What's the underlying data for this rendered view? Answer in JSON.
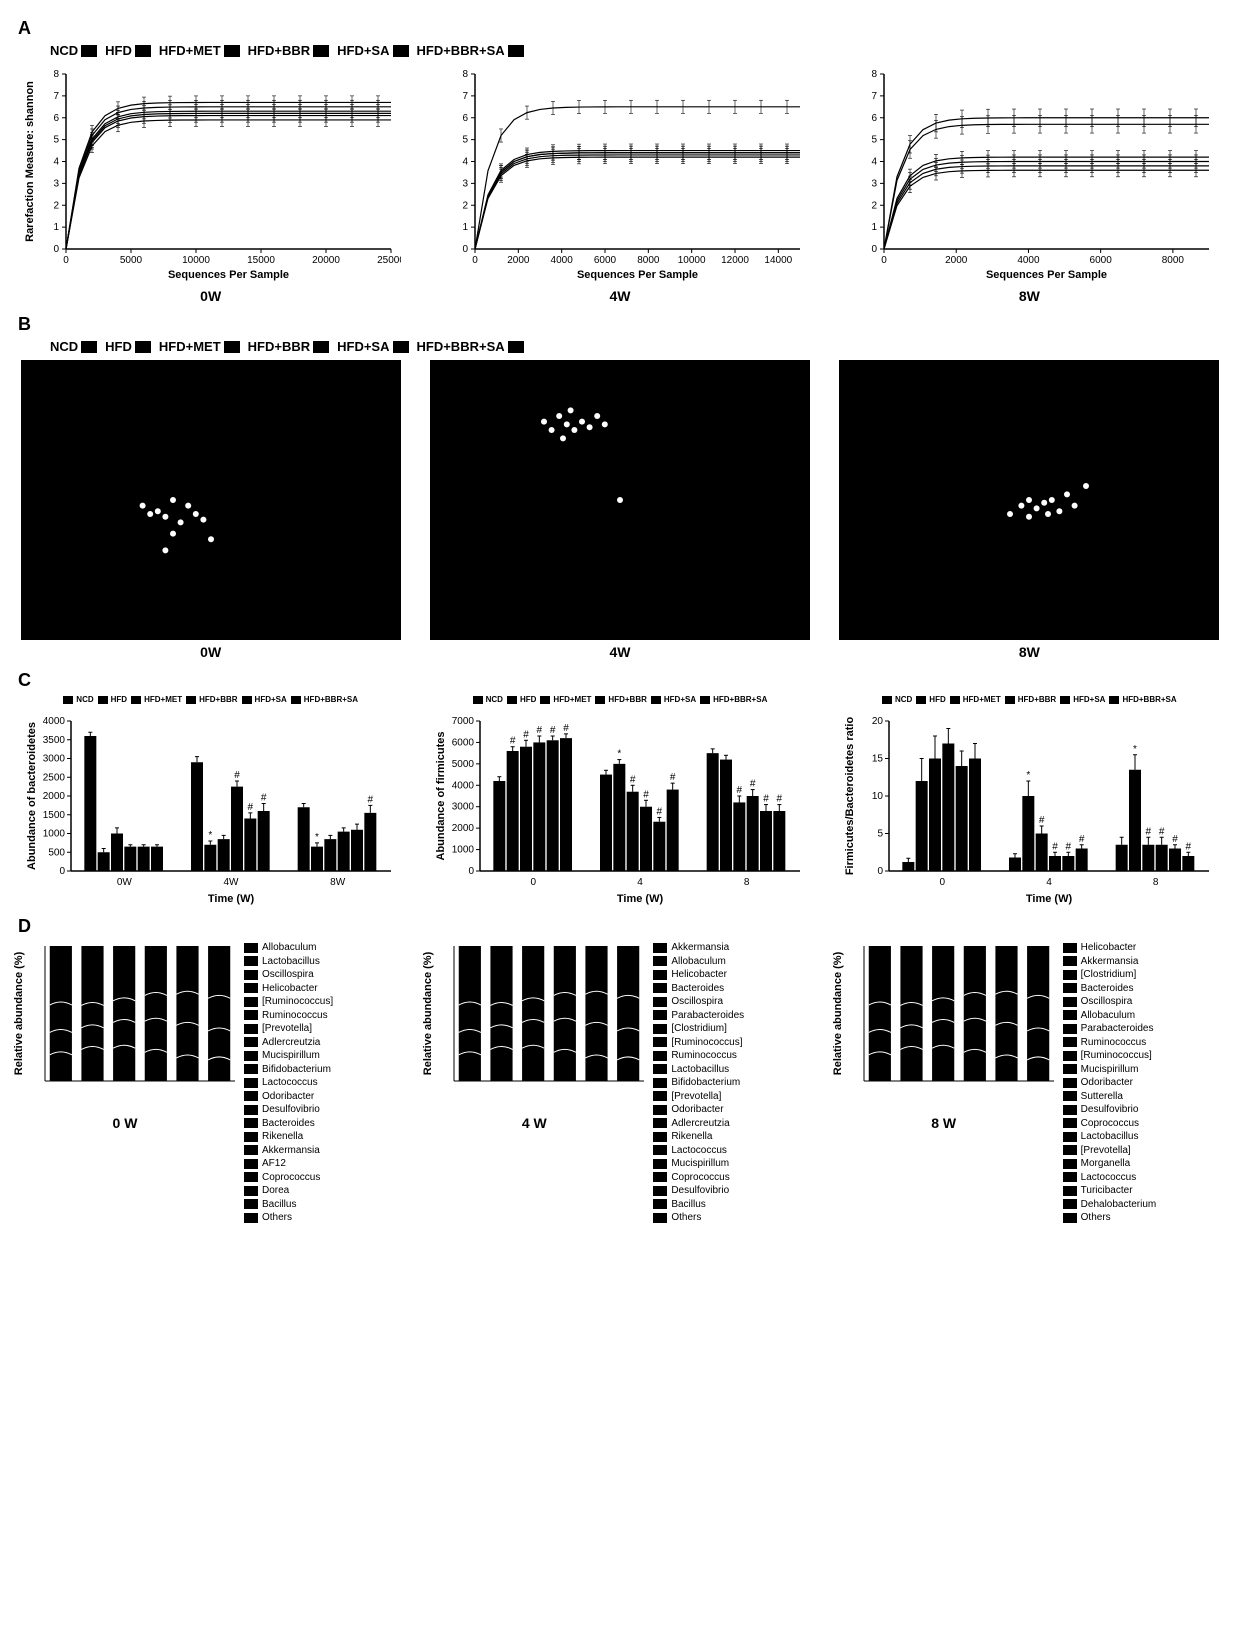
{
  "groups": [
    "NCD",
    "HFD",
    "HFD+MET",
    "HFD+BBR",
    "HFD+SA",
    "HFD+BBR+SA"
  ],
  "group_colors": [
    "#000000",
    "#000000",
    "#000000",
    "#000000",
    "#000000",
    "#000000"
  ],
  "timepoints": [
    "0W",
    "4W",
    "8W"
  ],
  "panelA": {
    "ylabel": "Rarefaction Measure: shannon",
    "xlabel": "Sequences Per Sample",
    "ylim": [
      0,
      8
    ],
    "ytick_step": 1,
    "charts": [
      {
        "time": "0W",
        "xmax": 25000,
        "xtick_step": 5000,
        "curves": [
          {
            "plateau": 6.7,
            "err": 0.3
          },
          {
            "plateau": 6.5,
            "err": 0.3
          },
          {
            "plateau": 6.3,
            "err": 0.3
          },
          {
            "plateau": 6.2,
            "err": 0.3
          },
          {
            "plateau": 6.1,
            "err": 0.3
          },
          {
            "plateau": 5.9,
            "err": 0.3
          }
        ]
      },
      {
        "time": "4W",
        "xmax": 15000,
        "xtick_step": 2000,
        "curves": [
          {
            "plateau": 6.5,
            "err": 0.3
          },
          {
            "plateau": 4.5,
            "err": 0.3
          },
          {
            "plateau": 4.4,
            "err": 0.3
          },
          {
            "plateau": 4.3,
            "err": 0.3
          },
          {
            "plateau": 4.4,
            "err": 0.3
          },
          {
            "plateau": 4.2,
            "err": 0.3
          }
        ]
      },
      {
        "time": "8W",
        "xmax": 9000,
        "xtick_step": 2000,
        "curves": [
          {
            "plateau": 6.0,
            "err": 0.4
          },
          {
            "plateau": 5.7,
            "err": 0.4
          },
          {
            "plateau": 4.2,
            "err": 0.3
          },
          {
            "plateau": 4.0,
            "err": 0.3
          },
          {
            "plateau": 3.8,
            "err": 0.3
          },
          {
            "plateau": 3.6,
            "err": 0.3
          }
        ]
      }
    ]
  },
  "panelB": {
    "background": "#000000",
    "point_color": "#ffffff",
    "point_r": 3,
    "charts": [
      {
        "time": "0W",
        "points": [
          [
            0.32,
            0.52
          ],
          [
            0.34,
            0.55
          ],
          [
            0.36,
            0.54
          ],
          [
            0.38,
            0.56
          ],
          [
            0.4,
            0.5
          ],
          [
            0.42,
            0.58
          ],
          [
            0.44,
            0.52
          ],
          [
            0.46,
            0.55
          ],
          [
            0.48,
            0.57
          ],
          [
            0.4,
            0.62
          ],
          [
            0.5,
            0.64
          ],
          [
            0.38,
            0.68
          ]
        ]
      },
      {
        "time": "4W",
        "points": [
          [
            0.3,
            0.22
          ],
          [
            0.32,
            0.25
          ],
          [
            0.34,
            0.2
          ],
          [
            0.36,
            0.23
          ],
          [
            0.38,
            0.25
          ],
          [
            0.4,
            0.22
          ],
          [
            0.42,
            0.24
          ],
          [
            0.44,
            0.2
          ],
          [
            0.46,
            0.23
          ],
          [
            0.35,
            0.28
          ],
          [
            0.37,
            0.18
          ],
          [
            0.5,
            0.5
          ]
        ]
      },
      {
        "time": "8W",
        "points": [
          [
            0.48,
            0.52
          ],
          [
            0.5,
            0.5
          ],
          [
            0.52,
            0.53
          ],
          [
            0.54,
            0.51
          ],
          [
            0.56,
            0.5
          ],
          [
            0.58,
            0.54
          ],
          [
            0.6,
            0.48
          ],
          [
            0.55,
            0.55
          ],
          [
            0.62,
            0.52
          ],
          [
            0.5,
            0.56
          ],
          [
            0.65,
            0.45
          ],
          [
            0.45,
            0.55
          ]
        ]
      }
    ]
  },
  "panelC": {
    "xlabel": "Time (W)",
    "charts": [
      {
        "ylabel": "Abundance of bacteroidetes",
        "ymax": 4000,
        "ytick_step": 500,
        "groups": [
          "0W",
          "4W",
          "8W"
        ],
        "series": [
          [
            3600,
            2900,
            1700
          ],
          [
            500,
            700,
            650
          ],
          [
            1000,
            850,
            850
          ],
          [
            650,
            2250,
            1050
          ],
          [
            650,
            1400,
            1100
          ],
          [
            650,
            1600,
            1550
          ]
        ],
        "errors": [
          [
            100,
            150,
            100
          ],
          [
            100,
            100,
            100
          ],
          [
            150,
            100,
            100
          ],
          [
            50,
            150,
            100
          ],
          [
            50,
            150,
            150
          ],
          [
            50,
            200,
            200
          ]
        ],
        "sig": [
          [
            "",
            "",
            "",
            "",
            "",
            ""
          ],
          [
            "",
            "*",
            "",
            "#",
            "#",
            "#"
          ],
          [
            "",
            "*",
            "",
            "",
            "",
            "#"
          ]
        ]
      },
      {
        "ylabel": "Abundance of firmicutes",
        "ymax": 7000,
        "ytick_step": 1000,
        "groups": [
          "0",
          "4",
          "8"
        ],
        "series": [
          [
            4200,
            4500,
            5500
          ],
          [
            5600,
            5000,
            5200
          ],
          [
            5800,
            3700,
            3200
          ],
          [
            6000,
            3000,
            3500
          ],
          [
            6100,
            2300,
            2800
          ],
          [
            6200,
            3800,
            2800
          ]
        ],
        "errors": [
          [
            200,
            200,
            200
          ],
          [
            200,
            200,
            200
          ],
          [
            300,
            300,
            300
          ],
          [
            300,
            300,
            300
          ],
          [
            200,
            200,
            300
          ],
          [
            200,
            300,
            300
          ]
        ],
        "sig": [
          [
            "",
            "#",
            "#",
            "#",
            "#",
            "#"
          ],
          [
            "",
            "*",
            "#",
            "#",
            "#",
            "#"
          ],
          [
            "",
            "",
            "#",
            "#",
            "#",
            "#"
          ]
        ]
      },
      {
        "ylabel": "Firmicutes/Bacteroidetes ratio",
        "ymax": 20,
        "ytick_step": 5,
        "groups": [
          "0",
          "4",
          "8"
        ],
        "series": [
          [
            1.2,
            1.8,
            3.5
          ],
          [
            12,
            10,
            13.5
          ],
          [
            15,
            5,
            3.5
          ],
          [
            17,
            2,
            3.5
          ],
          [
            14,
            2,
            3
          ],
          [
            15,
            3,
            2
          ]
        ],
        "errors": [
          [
            0.5,
            0.5,
            1
          ],
          [
            3,
            2,
            2
          ],
          [
            3,
            1,
            1
          ],
          [
            2,
            0.5,
            1
          ],
          [
            2,
            0.5,
            0.5
          ],
          [
            2,
            0.5,
            0.5
          ]
        ],
        "sig": [
          [
            "",
            "",
            "",
            "",
            "",
            ""
          ],
          [
            "",
            "*",
            "#",
            "#",
            "#",
            "#"
          ],
          [
            "",
            "*",
            "#",
            "#",
            "#",
            "#"
          ]
        ]
      }
    ]
  },
  "panelD": {
    "ylabel": "Relative abundance (%)",
    "charts": [
      {
        "time": "0 W",
        "taxa": [
          "Allobaculum",
          "Lactobacillus",
          "Oscillospira",
          "Helicobacter",
          "[Ruminococcus]",
          "Ruminococcus",
          "[Prevotella]",
          "Adlercreutzia",
          "Mucispirillum",
          "Bifidobacterium",
          "Lactococcus",
          "Odoribacter",
          "Desulfovibrio",
          "Bacteroides",
          "Rikenella",
          "Akkermansia",
          "AF12",
          "Coprococcus",
          "Dorea",
          "Bacillus",
          "Others"
        ]
      },
      {
        "time": "4 W",
        "taxa": [
          "Akkermansia",
          "Allobaculum",
          "Helicobacter",
          "Bacteroides",
          "Oscillospira",
          "Parabacteroides",
          "[Clostridium]",
          "[Ruminococcus]",
          "Ruminococcus",
          "Lactobacillus",
          "Bifidobacterium",
          "[Prevotella]",
          "Odoribacter",
          "Adlercreutzia",
          "Rikenella",
          "Lactococcus",
          "Mucispirillum",
          "Coprococcus",
          "Desulfovibrio",
          "Bacillus",
          "Others"
        ]
      },
      {
        "time": "8 W",
        "taxa": [
          "Helicobacter",
          "Akkermansia",
          "[Clostridium]",
          "Bacteroides",
          "Oscillospira",
          "Allobaculum",
          "Parabacteroides",
          "Ruminococcus",
          "[Ruminococcus]",
          "Mucispirillum",
          "Odoribacter",
          "Sutterella",
          "Desulfovibrio",
          "Coprococcus",
          "Lactobacillus",
          "[Prevotella]",
          "Morganella",
          "Lactococcus",
          "Turicibacter",
          "Dehalobacterium",
          "Others"
        ]
      }
    ]
  }
}
